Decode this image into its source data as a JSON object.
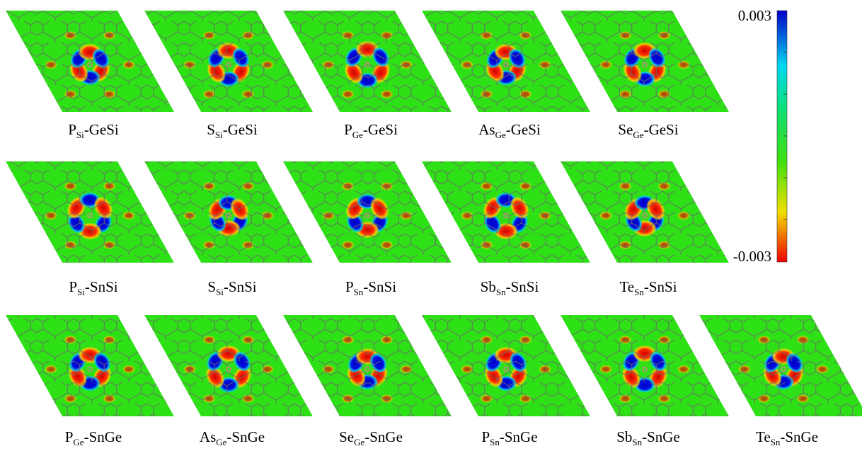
{
  "rows": [
    {
      "panels": [
        {
          "element": "P",
          "site": "Si",
          "host": "-GeSi"
        },
        {
          "element": "S",
          "site": "Si",
          "host": "-GeSi"
        },
        {
          "element": "P",
          "site": "Ge",
          "host": "-GeSi"
        },
        {
          "element": "As",
          "site": "Ge",
          "host": "-GeSi"
        },
        {
          "element": "Se",
          "site": "Ge",
          "host": "-GeSi"
        }
      ]
    },
    {
      "panels": [
        {
          "element": "P",
          "site": "Si",
          "host": "-SnSi"
        },
        {
          "element": "S",
          "site": "Si",
          "host": "-SnSi"
        },
        {
          "element": "P",
          "site": "Sn",
          "host": "-SnSi"
        },
        {
          "element": "Sb",
          "site": "Sn",
          "host": "-SnSi"
        },
        {
          "element": "Te",
          "site": "Sn",
          "host": "-SnSi"
        }
      ]
    },
    {
      "panels": [
        {
          "element": "P",
          "site": "Ge",
          "host": "-SnGe"
        },
        {
          "element": "As",
          "site": "Ge",
          "host": "-SnGe"
        },
        {
          "element": "Se",
          "site": "Ge",
          "host": "-SnGe"
        },
        {
          "element": "P",
          "site": "Sn",
          "host": "-SnGe"
        },
        {
          "element": "Sb",
          "site": "Sn",
          "host": "-SnGe"
        },
        {
          "element": "Te",
          "site": "Sn",
          "host": "-SnGe"
        }
      ]
    }
  ],
  "colorbar": {
    "max_label": "0.003",
    "min_label": "-0.003"
  }
}
